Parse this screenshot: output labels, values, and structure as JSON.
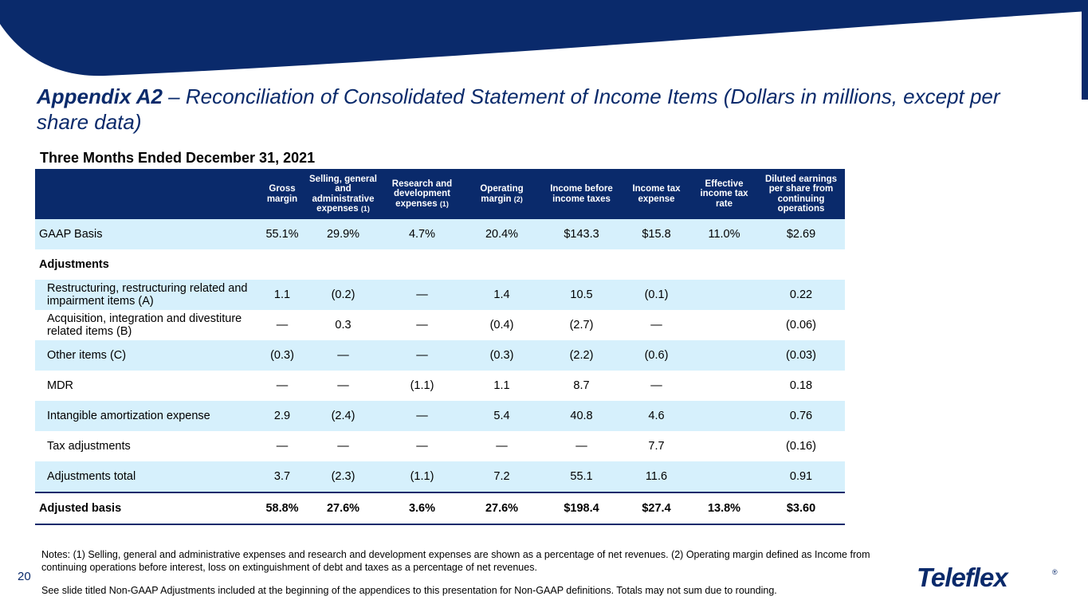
{
  "title": {
    "bold_part": "Appendix A2",
    "rest": " – Reconciliation of Consolidated Statement of Income Items (Dollars in millions, except per share data)"
  },
  "subtitle": "Three Months Ended December 31, 2021",
  "table": {
    "headers": [
      {
        "label": "",
        "note": ""
      },
      {
        "label": "Gross margin",
        "note": ""
      },
      {
        "label": "Selling, general and administrative expenses",
        "note": "(1)"
      },
      {
        "label": "Research and development expenses",
        "note": "(1)"
      },
      {
        "label": "Operating margin",
        "note": "(2)"
      },
      {
        "label": "Income before income taxes",
        "note": ""
      },
      {
        "label": "Income tax expense",
        "note": ""
      },
      {
        "label": "Effective income tax rate",
        "note": ""
      },
      {
        "label": "Diluted earnings per share from continuing operations",
        "note": ""
      }
    ],
    "rows": [
      {
        "label": "GAAP Basis",
        "values": [
          "55.1%",
          "29.9%",
          "4.7%",
          "20.4%",
          "$143.3",
          "$15.8",
          "11.0%",
          "$2.69"
        ]
      },
      {
        "label": "Adjustments"
      },
      {
        "label": "Restructuring, restructuring related and impairment items (A)",
        "values": [
          "1.1",
          "(0.2)",
          "—",
          "1.4",
          "10.5",
          "(0.1)",
          "",
          "0.22"
        ]
      },
      {
        "label": "Acquisition, integration and divestiture related items (B)",
        "values": [
          "—",
          "0.3",
          "—",
          "(0.4)",
          "(2.7)",
          "—",
          "",
          "(0.06)"
        ]
      },
      {
        "label": "Other items (C)",
        "values": [
          "(0.3)",
          "—",
          "—",
          "(0.3)",
          "(2.2)",
          "(0.6)",
          "",
          "(0.03)"
        ]
      },
      {
        "label": "MDR",
        "values": [
          "—",
          "—",
          "(1.1)",
          "1.1",
          "8.7",
          "—",
          "",
          "0.18"
        ]
      },
      {
        "label": "Intangible amortization expense",
        "values": [
          "2.9",
          "(2.4)",
          "—",
          "5.4",
          "40.8",
          "4.6",
          "",
          "0.76"
        ]
      },
      {
        "label": "Tax adjustments",
        "values": [
          "—",
          "—",
          "—",
          "—",
          "—",
          "7.7",
          "",
          "(0.16)"
        ]
      },
      {
        "label": "Adjustments total",
        "values": [
          "3.7",
          "(2.3)",
          "(1.1)",
          "7.2",
          "55.1",
          "11.6",
          "",
          "0.91"
        ]
      },
      {
        "label": "Adjusted basis",
        "values": [
          "58.8%",
          "27.6%",
          "3.6%",
          "27.6%",
          "$198.4",
          "$27.4",
          "13.8%",
          "$3.60"
        ]
      }
    ]
  },
  "notes": [
    "Notes: (1) Selling, general and administrative expenses and research and development expenses are shown as a percentage of net revenues.  (2) Operating margin defined as Income from continuing operations before interest, loss on extinguishment of debt and taxes as a percentage of net revenues.",
    "See slide titled Non-GAAP Adjustments included at the beginning of the appendices to this presentation for Non-GAAP definitions. Totals may not sum due to rounding."
  ],
  "page_number": "20",
  "logo_text": "Teleflex",
  "colors": {
    "navy": "#0a2a6b",
    "row_shade": "#d6f0fc"
  }
}
